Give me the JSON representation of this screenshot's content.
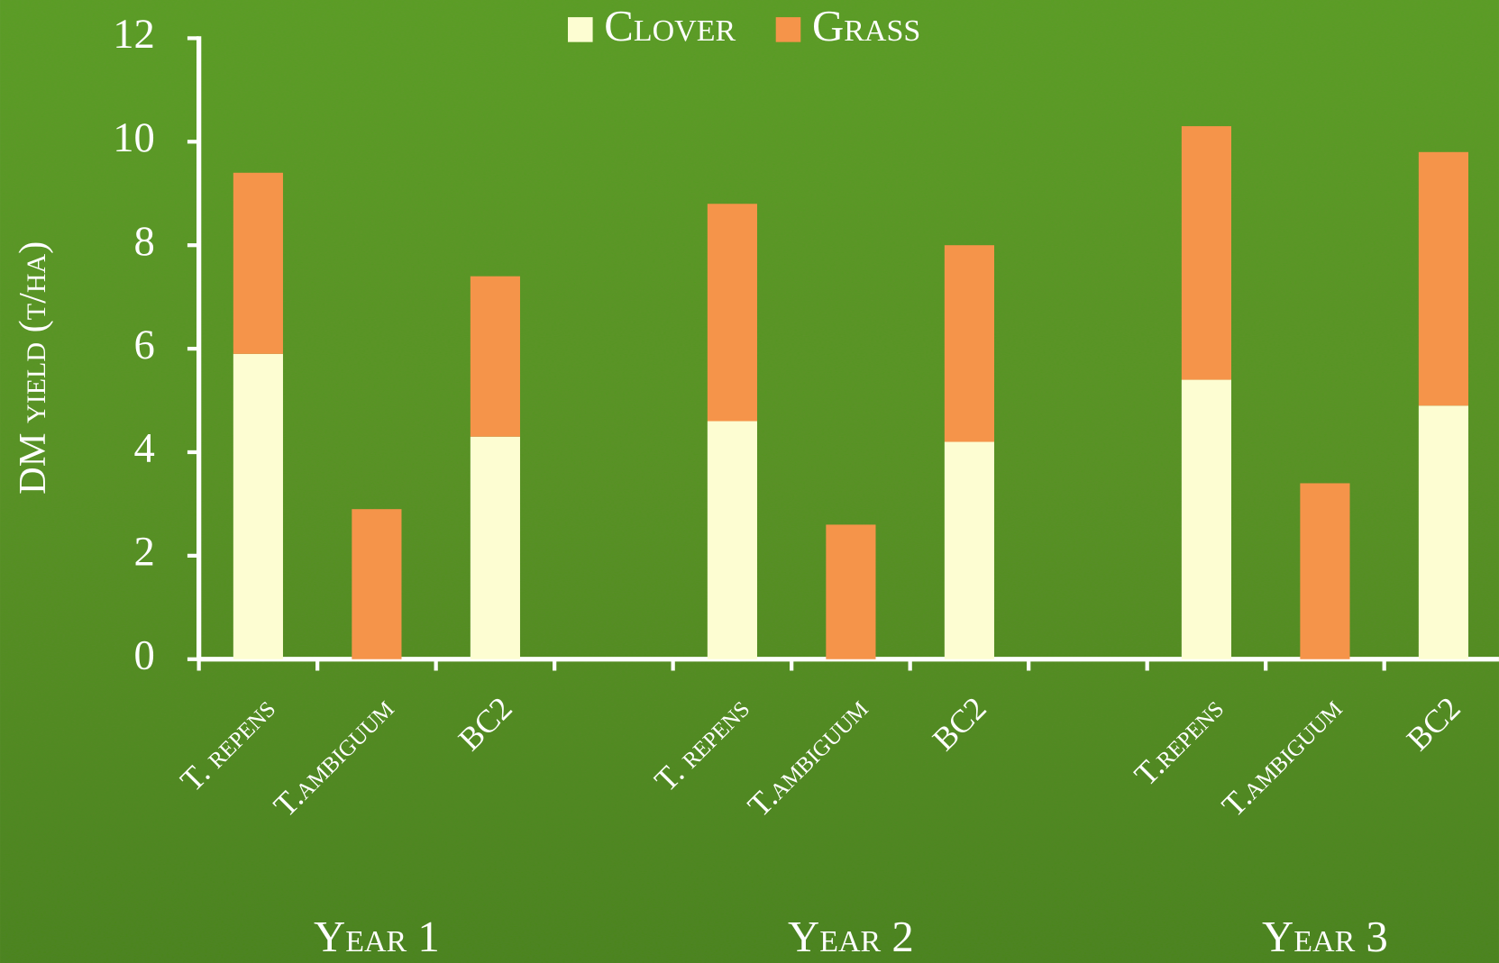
{
  "chart_data": {
    "type": "stacked_bar",
    "y_label": "DM yield (t/ha)",
    "categories": [
      "T. repens",
      "T.ambiguum",
      "BC2",
      null,
      "T. repens",
      "T.ambiguum",
      "BC2",
      null,
      "T.repens",
      "T.ambiguum",
      "BC2"
    ],
    "group_labels": [
      "Year 1",
      "Year 2",
      "Year 3"
    ],
    "series": [
      {
        "name": "Clover",
        "color": "#fdfdd2",
        "values": [
          5.9,
          0,
          4.3,
          null,
          4.6,
          0,
          4.2,
          null,
          5.4,
          0,
          4.9
        ]
      },
      {
        "name": "Grass",
        "color": "#f5944a",
        "values": [
          3.5,
          2.9,
          3.1,
          null,
          4.2,
          2.6,
          3.8,
          null,
          4.9,
          3.4,
          4.9
        ]
      }
    ],
    "ylim": [
      0,
      12
    ],
    "yticks": [
      0,
      2,
      4,
      6,
      8,
      10,
      12
    ],
    "grid": false
  }
}
